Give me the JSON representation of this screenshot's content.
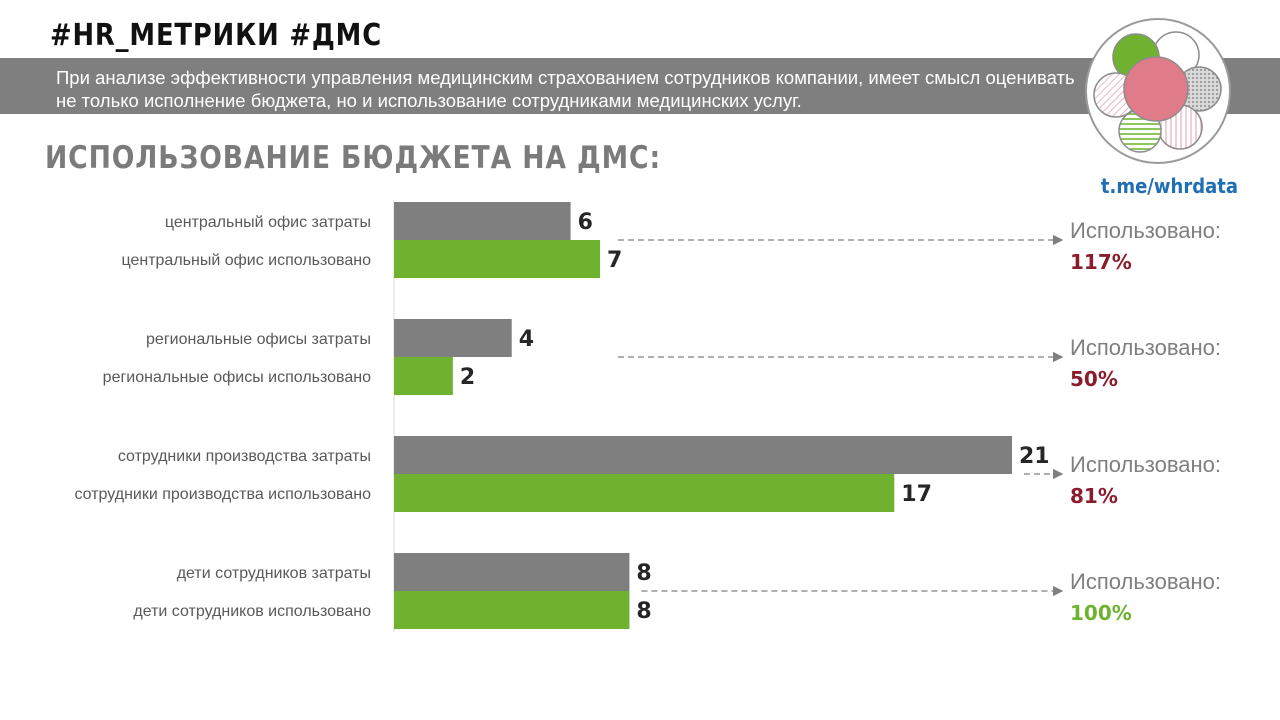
{
  "header": {
    "hashtags": "#HR_МЕТРИКИ #ДМС",
    "description": "При анализе эффективности управления медицинским страхованием сотрудников компании, имеет смысл оценивать не только исполнение бюджета, но и использование сотрудниками медицинских услуг."
  },
  "section_title": "ИСПОЛЬЗОВАНИЕ БЮДЖЕТА НА ДМС:",
  "logo": {
    "icon": "flower-circles-logo-icon",
    "link": "t.me/whrdata"
  },
  "colors": {
    "cost": "#7f7f7f",
    "used": "#6fb22f",
    "pct_default": "#8a1c2b",
    "pct_full": "#6fb22f",
    "label": "#595959",
    "value": "#262626"
  },
  "chart_data": {
    "type": "bar",
    "orientation": "horizontal",
    "categories": [
      "центральный офис затраты",
      "центральный офис использовано",
      "региональные офисы затраты",
      "региональные офисы использовано",
      "сотрудники производства затраты",
      "сотрудники производства использовано",
      "дети сотрудников затраты",
      "дети сотрудников использовано"
    ],
    "values": [
      6,
      7,
      4,
      2,
      21,
      17,
      8,
      8
    ],
    "bar_roles": [
      "cost",
      "used",
      "cost",
      "used",
      "cost",
      "used",
      "cost",
      "used"
    ],
    "xlim": [
      0,
      21
    ],
    "grid": false,
    "usage": [
      {
        "label": "Использовано:",
        "value": "117%",
        "status": "over"
      },
      {
        "label": "Использовано:",
        "value": "50%",
        "status": "under"
      },
      {
        "label": "Использовано:",
        "value": "81%",
        "status": "under"
      },
      {
        "label": "Использовано:",
        "value": "100%",
        "status": "full"
      }
    ]
  }
}
